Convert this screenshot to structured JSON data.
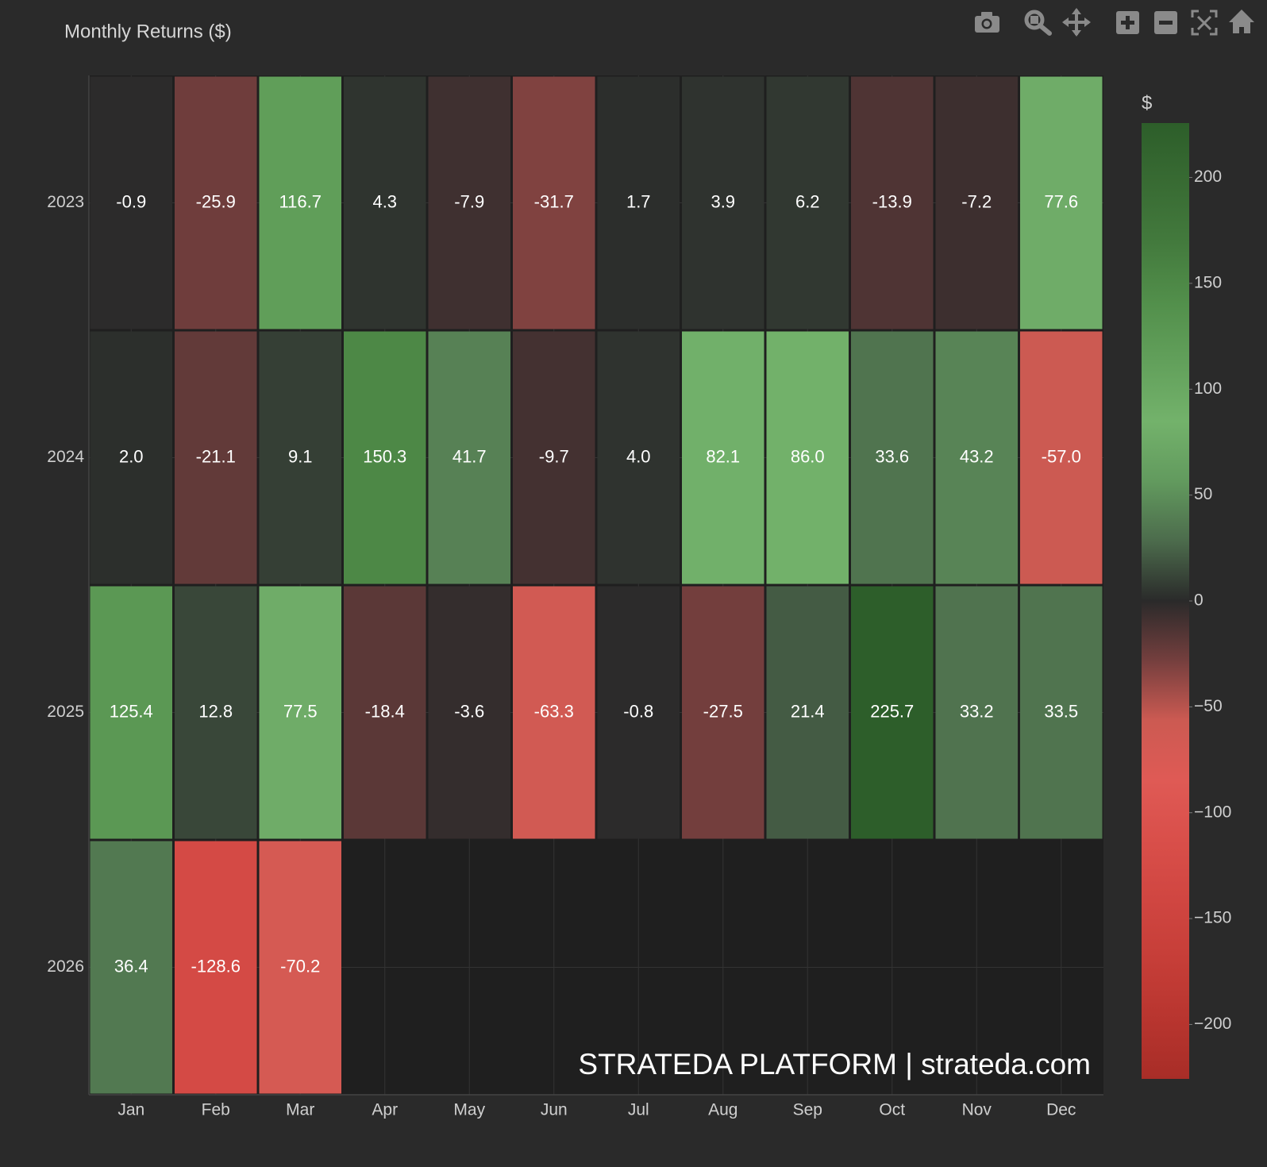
{
  "chart_data": {
    "type": "heatmap",
    "title": "Monthly Returns ($)",
    "x": [
      "Jan",
      "Feb",
      "Mar",
      "Apr",
      "May",
      "Jun",
      "Jul",
      "Aug",
      "Sep",
      "Oct",
      "Nov",
      "Dec"
    ],
    "y": [
      "2023",
      "2024",
      "2025",
      "2026"
    ],
    "z": [
      [
        -0.9,
        -25.9,
        116.7,
        4.3,
        -7.9,
        -31.7,
        1.7,
        3.9,
        6.2,
        -13.9,
        -7.2,
        77.6
      ],
      [
        2.0,
        -21.1,
        9.1,
        150.3,
        41.7,
        -9.7,
        4.0,
        82.1,
        86.0,
        33.6,
        43.2,
        -57.0
      ],
      [
        125.4,
        12.8,
        77.5,
        -18.4,
        -3.6,
        -63.3,
        -0.8,
        -27.5,
        21.4,
        225.7,
        33.2,
        33.5
      ],
      [
        36.4,
        -128.6,
        -70.2,
        null,
        null,
        null,
        null,
        null,
        null,
        null,
        null,
        null
      ]
    ],
    "value_labels": [
      [
        "-0.9",
        "-25.9",
        "116.7",
        "4.3",
        "-7.9",
        "-31.7",
        "1.7",
        "3.9",
        "6.2",
        "-13.9",
        "-7.2",
        "77.6"
      ],
      [
        "2.0",
        "-21.1",
        "9.1",
        "150.3",
        "41.7",
        "-9.7",
        "4.0",
        "82.1",
        "86.0",
        "33.6",
        "43.2",
        "-57.0"
      ],
      [
        "125.4",
        "12.8",
        "77.5",
        "-18.4",
        "-3.6",
        "-63.3",
        "-0.8",
        "-27.5",
        "21.4",
        "225.7",
        "33.2",
        "33.5"
      ],
      [
        "36.4",
        "-128.6",
        "-70.2",
        null,
        null,
        null,
        null,
        null,
        null,
        null,
        null,
        null
      ]
    ],
    "zlim": [
      -225.7,
      225.7
    ],
    "colorscale": [
      "#a82d27",
      "#b8352f",
      "#c63e38",
      "#d04641",
      "#d94f4a",
      "#df5a55",
      "#cc5a52",
      "#753f3e",
      "#2a2a2a",
      "#4c6b4c",
      "#629a5e",
      "#73b26b",
      "#62a05b",
      "#528f4b",
      "#437a3d",
      "#386b33",
      "#2d5e2a"
    ],
    "colorbar": {
      "title": "$",
      "ticks": [
        {
          "value": -200,
          "label": "−200"
        },
        {
          "value": -150,
          "label": "−150"
        },
        {
          "value": -100,
          "label": "−100"
        },
        {
          "value": -50,
          "label": "−50"
        },
        0,
        50,
        100,
        150,
        200
      ]
    },
    "watermark": "STRATEDA PLATFORM | strateda.com"
  }
}
